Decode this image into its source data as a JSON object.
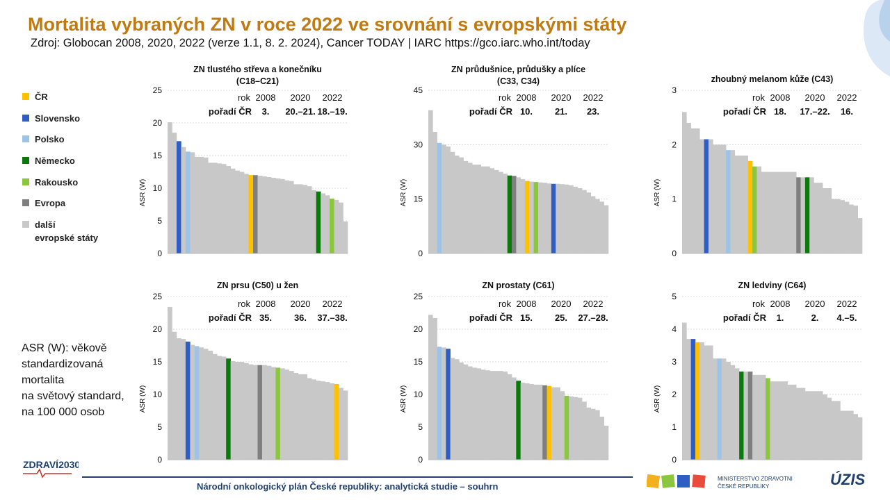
{
  "header": {
    "title": "Mortalita vybraných ZN v roce 2022 ve srovnání s evropskými státy",
    "source": "Zdroj: Globocan 2008, 2020, 2022 (verze 1.1, 8. 2. 2024), Cancer TODAY | IARC https://gco.iarc.who.int/today"
  },
  "colors": {
    "cr": "#ffc000",
    "slovensko": "#2f5dc4",
    "polsko": "#9dc3e6",
    "nemecko": "#0a7a0a",
    "rakousko": "#8cc63f",
    "evropa": "#7f7f7f",
    "other": "#c8c8c8",
    "title": "#c07a12",
    "footer": "#1f3f6e"
  },
  "legend": [
    {
      "key": "cr",
      "label": "ČR"
    },
    {
      "key": "slovensko",
      "label": "Slovensko"
    },
    {
      "key": "polsko",
      "label": "Polsko"
    },
    {
      "key": "nemecko",
      "label": "Německo"
    },
    {
      "key": "rakousko",
      "label": "Rakousko"
    },
    {
      "key": "evropa",
      "label": "Evropa"
    },
    {
      "key": "other",
      "label": "další\nevropské státy"
    }
  ],
  "note": "ASR (W): věkově\nstandardizovaná\nmortalita\nna světový standard,\nna 100 000 osob",
  "footer": {
    "text": "Národní onkologický plán České republiky: analytická studie – souhrn",
    "logo_left": "ZDRAVÍ2030",
    "ministry": "MINISTERSTVO ZDRAVOTNICTVÍ\nČESKÉ REPUBLIKY",
    "uzis": "ÚZIS"
  },
  "chart_data": [
    {
      "type": "bar",
      "title": "ZN tlustého střeva a konečníku\n(C18–C21)",
      "ylabel": "ASR (W)",
      "ylim": [
        0,
        25
      ],
      "yticks": [
        0,
        5,
        10,
        15,
        20,
        25
      ],
      "rank_table": {
        "rok": "rok",
        "years": [
          "2008",
          "2020",
          "2022"
        ],
        "label": "pořadí ČR",
        "ranks": [
          "3.",
          "20.–21.",
          "18.–19."
        ]
      },
      "values": [
        20.1,
        18.5,
        17.2,
        16.3,
        15.6,
        15.5,
        14.8,
        14.8,
        14.7,
        13.9,
        13.9,
        13.8,
        13.7,
        13.4,
        13.0,
        12.7,
        12.5,
        12.2,
        12.0,
        12.0,
        11.9,
        11.8,
        11.7,
        11.6,
        11.5,
        11.4,
        11.2,
        11.1,
        10.6,
        10.6,
        10.5,
        10.3,
        9.7,
        9.5,
        9.2,
        8.9,
        8.4,
        8.2,
        7.8,
        4.9
      ],
      "highlights": {
        "2": "slovensko",
        "4": "polsko",
        "18": "cr",
        "19": "evropa",
        "33": "nemecko",
        "36": "rakousko"
      }
    },
    {
      "type": "bar",
      "title": "ZN průdušnice, průdušky a plíce\n(C33, C34)",
      "ylabel": "ASR (W)",
      "ylim": [
        0,
        45
      ],
      "yticks": [
        0,
        15,
        30,
        45
      ],
      "rank_table": {
        "rok": "rok",
        "years": [
          "2008",
          "2020",
          "2022"
        ],
        "label": "pořadí ČR",
        "ranks": [
          "10.",
          "21.",
          "23."
        ]
      },
      "values": [
        39.5,
        33.5,
        30.5,
        30.0,
        29.5,
        28.0,
        27.0,
        26.5,
        25.5,
        25.0,
        24.5,
        24.5,
        24.0,
        24.0,
        23.5,
        23.0,
        22.5,
        22.0,
        21.5,
        21.4,
        21.0,
        20.5,
        20.0,
        19.8,
        19.7,
        19.6,
        19.5,
        19.3,
        19.2,
        19.2,
        19.1,
        19.0,
        18.8,
        18.4,
        18.0,
        17.5,
        16.8,
        15.8,
        15.0,
        14.3,
        13.3
      ],
      "highlights": {
        "2": "polsko",
        "18": "nemecko",
        "19": "evropa",
        "22": "cr",
        "24": "rakousko",
        "28": "slovensko"
      }
    },
    {
      "type": "bar",
      "title": "zhoubný melanom kůže (C43)",
      "ylabel": "ASR (W)",
      "ylim": [
        0,
        3
      ],
      "yticks": [
        0,
        1,
        2,
        3
      ],
      "rank_table": {
        "rok": "rok",
        "years": [
          "2008",
          "2020",
          "2022"
        ],
        "label": "pořadí ČR",
        "ranks": [
          "18.",
          "17.–22.",
          "16."
        ]
      },
      "values": [
        2.6,
        2.4,
        2.3,
        2.3,
        2.1,
        2.1,
        2.1,
        2.0,
        2.0,
        2.0,
        1.9,
        1.9,
        1.8,
        1.8,
        1.8,
        1.7,
        1.6,
        1.6,
        1.5,
        1.5,
        1.5,
        1.5,
        1.5,
        1.5,
        1.5,
        1.5,
        1.4,
        1.4,
        1.4,
        1.4,
        1.3,
        1.3,
        1.2,
        1.2,
        1.0,
        1.0,
        0.98,
        0.95,
        0.9,
        0.88,
        0.65
      ],
      "highlights": {
        "5": "slovensko",
        "10": "polsko",
        "15": "cr",
        "16": "rakousko",
        "26": "evropa",
        "28": "nemecko"
      }
    },
    {
      "type": "bar",
      "title": "ZN prsu (C50) u žen",
      "ylabel": "ASR (W)",
      "ylim": [
        0,
        25
      ],
      "yticks": [
        0,
        5,
        10,
        15,
        20,
        25
      ],
      "rank_table": {
        "rok": "rok",
        "years": [
          "2008",
          "2020",
          "2022"
        ],
        "label": "pořadí ČR",
        "ranks": [
          "35.",
          "36.",
          "37.–38."
        ]
      },
      "values": [
        23.4,
        19.6,
        18.6,
        18.5,
        18.1,
        17.6,
        17.4,
        17.2,
        17.0,
        16.7,
        16.2,
        15.9,
        15.8,
        15.5,
        15.1,
        15.0,
        15.0,
        14.8,
        14.6,
        14.5,
        14.5,
        14.5,
        14.4,
        14.2,
        14.1,
        14.0,
        13.8,
        13.6,
        13.3,
        13.1,
        13.1,
        12.5,
        12.3,
        12.1,
        12.0,
        11.9,
        11.7,
        11.6,
        11.0,
        10.6
      ],
      "highlights": {
        "4": "slovensko",
        "6": "polsko",
        "13": "nemecko",
        "20": "evropa",
        "24": "rakousko",
        "37": "cr"
      }
    },
    {
      "type": "bar",
      "title": "ZN prostaty (C61)",
      "ylabel": "ASR (W)",
      "ylim": [
        0,
        25
      ],
      "yticks": [
        0,
        5,
        10,
        15,
        20,
        25
      ],
      "rank_table": {
        "rok": "rok",
        "years": [
          "2008",
          "2020",
          "2022"
        ],
        "label": "pořadí ČR",
        "ranks": [
          "15.",
          "25.",
          "27.–28."
        ]
      },
      "values": [
        22.2,
        21.7,
        17.3,
        17.2,
        17.0,
        15.6,
        15.4,
        14.9,
        14.6,
        14.3,
        14.1,
        14.0,
        13.8,
        13.7,
        13.6,
        13.6,
        13.6,
        13.5,
        13.1,
        12.6,
        12.1,
        11.8,
        11.7,
        11.6,
        11.5,
        11.5,
        11.4,
        11.3,
        11.1,
        11.1,
        10.5,
        9.8,
        9.7,
        9.6,
        9.5,
        8.9,
        8.0,
        7.8,
        7.6,
        6.6,
        5.2
      ],
      "highlights": {
        "2": "polsko",
        "4": "slovensko",
        "20": "nemecko",
        "26": "evropa",
        "27": "cr",
        "31": "rakousko"
      }
    },
    {
      "type": "bar",
      "title": "ZN ledviny (C64)",
      "ylabel": "ASR (W)",
      "ylim": [
        0,
        5
      ],
      "yticks": [
        0,
        1,
        2,
        3,
        4,
        5
      ],
      "rank_table": {
        "rok": "rok",
        "years": [
          "2008",
          "2020",
          "2022"
        ],
        "label": "pořadí ČR",
        "ranks": [
          "1.",
          "2.",
          "4.–5."
        ]
      },
      "values": [
        4.2,
        3.7,
        3.7,
        3.6,
        3.6,
        3.5,
        3.5,
        3.1,
        3.1,
        3.1,
        3.0,
        2.9,
        2.8,
        2.7,
        2.7,
        2.7,
        2.6,
        2.6,
        2.6,
        2.5,
        2.4,
        2.4,
        2.4,
        2.4,
        2.3,
        2.3,
        2.2,
        2.2,
        2.1,
        2.1,
        2.1,
        2.1,
        2.0,
        1.9,
        1.8,
        1.8,
        1.5,
        1.5,
        1.5,
        1.4,
        1.3
      ],
      "highlights": {
        "2": "slovensko",
        "3": "cr",
        "8": "polsko",
        "13": "nemecko",
        "15": "evropa",
        "19": "rakousko"
      }
    }
  ]
}
